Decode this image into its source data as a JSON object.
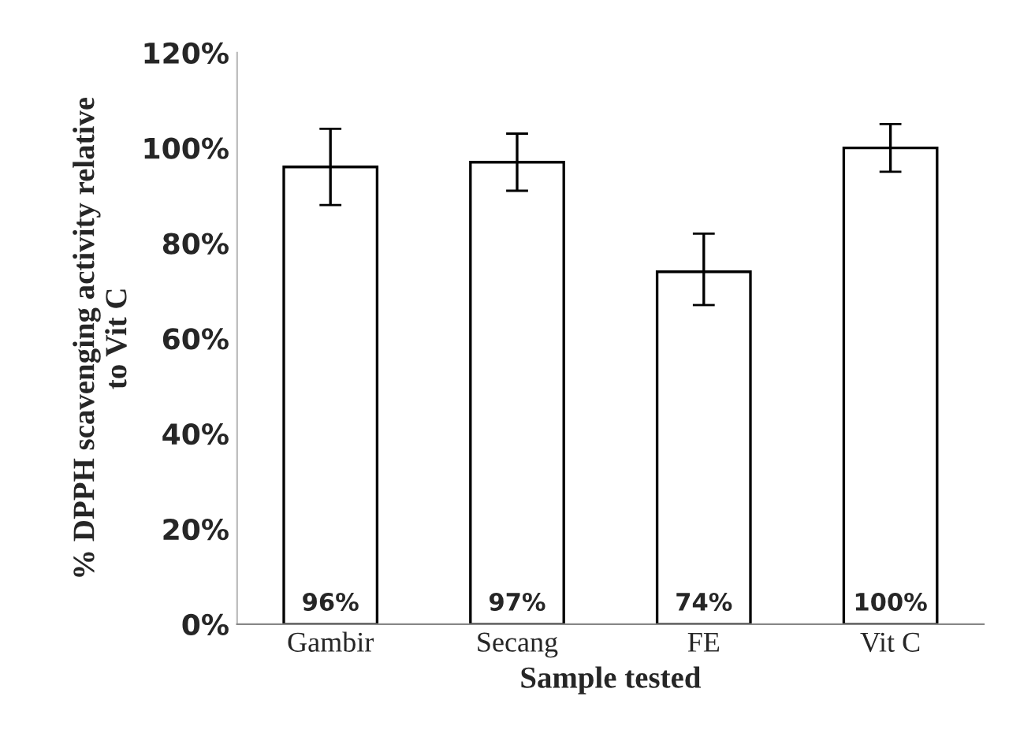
{
  "chart_data": {
    "type": "bar",
    "xlabel": "Sample tested",
    "ylabel": "% DPPH scavenging activity relative\nto Vit C",
    "categories": [
      "Gambir",
      "Secang",
      "FE",
      "Vit C"
    ],
    "values": [
      96,
      97,
      74,
      100
    ],
    "color": "#ffffff",
    "value_labels": [
      "96%",
      "97%",
      "74%",
      "100%"
    ],
    "errors": [
      [
        88,
        104
      ],
      [
        91,
        103
      ],
      [
        67,
        82
      ],
      [
        95,
        105
      ]
    ],
    "ylim": [
      0,
      120
    ],
    "yticks": [
      {
        "value": 0,
        "label": "0%"
      },
      {
        "value": 20,
        "label": "20%"
      },
      {
        "value": 40,
        "label": "40%"
      },
      {
        "value": 60,
        "label": "60%"
      },
      {
        "value": 80,
        "label": "80%"
      },
      {
        "value": 100,
        "label": "100%"
      },
      {
        "value": 120,
        "label": "120%"
      }
    ],
    "grid": false,
    "legend": false
  }
}
